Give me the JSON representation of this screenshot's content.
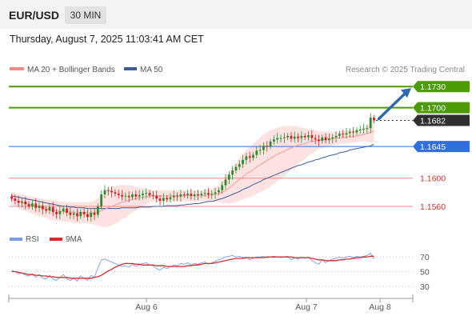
{
  "header": {
    "symbol": "EUR/USD",
    "timeframe": "30 MIN",
    "datetime": "Thursday, August 7, 2025 11:03:41 AM CET"
  },
  "legend": {
    "ma20_bb": "MA 20 + Bollinger Bands",
    "ma50": "MA 50",
    "credit": "Research © 2025 Trading Central"
  },
  "rsi_legend": {
    "rsi": "RSI",
    "ma9": "9MA"
  },
  "colors": {
    "green": "#4c9a06",
    "blue_level": "#2f6fe0",
    "red_level": "#f08a8a",
    "current": "#2f2f2f",
    "ma50": "#3a5d9a",
    "bollinger_fill": "#fde2e2",
    "ma20": "#f29a9a",
    "rsi_line": "#7a9ce8",
    "rsi_ma": "#d92b2b",
    "arrow": "#2f6ab0",
    "candle_up": "#2e8b2e",
    "candle_down": "#d02020"
  },
  "chart_data": [
    {
      "type": "candlestick",
      "title": "EUR/USD",
      "timeframe": "30 MIN",
      "ylim": [
        1.1535,
        1.1745
      ],
      "x_ticks": [
        "Aug 6",
        "Aug 7",
        "Aug 8"
      ],
      "key_levels": [
        {
          "value": 1.173,
          "label": "1.1730",
          "kind": "resistance-target",
          "color": "#4c9a06"
        },
        {
          "value": 1.17,
          "label": "1.1700",
          "kind": "resistance",
          "color": "#4c9a06"
        },
        {
          "value": 1.1682,
          "label": "1.1682",
          "kind": "current-price",
          "color": "#2f2f2f"
        },
        {
          "value": 1.1645,
          "label": "1.1645",
          "kind": "pivot",
          "color": "#2f6fe0"
        },
        {
          "value": 1.16,
          "label": "1.1600",
          "kind": "support",
          "color": "#f08a8a"
        },
        {
          "value": 1.156,
          "label": "1.1560",
          "kind": "support",
          "color": "#f08a8a"
        }
      ],
      "close": [
        1.1571,
        1.1568,
        1.1565,
        1.1567,
        1.1563,
        1.156,
        1.1564,
        1.1558,
        1.1561,
        1.1556,
        1.1554,
        1.1559,
        1.1552,
        1.1549,
        1.1553,
        1.1557,
        1.1551,
        1.1548,
        1.155,
        1.1546,
        1.1552,
        1.1549,
        1.1545,
        1.1551,
        1.1548,
        1.156,
        1.1577,
        1.1583,
        1.1582,
        1.158,
        1.1578,
        1.1576,
        1.1574,
        1.1575,
        1.1573,
        1.1577,
        1.1574,
        1.1576,
        1.1578,
        1.1579,
        1.1576,
        1.1575,
        1.1571,
        1.1568,
        1.1572,
        1.157,
        1.1573,
        1.1575,
        1.1574,
        1.1577,
        1.1576,
        1.1578,
        1.1575,
        1.1577,
        1.1576,
        1.1578,
        1.1579,
        1.1577,
        1.1578,
        1.158,
        1.1583,
        1.159,
        1.1598,
        1.1605,
        1.1611,
        1.1616,
        1.162,
        1.1626,
        1.1631,
        1.1629,
        1.1633,
        1.1639,
        1.164,
        1.1646,
        1.1645,
        1.1652,
        1.1655,
        1.1657,
        1.1657,
        1.1658,
        1.166,
        1.1656,
        1.1659,
        1.1657,
        1.166,
        1.1658,
        1.1661,
        1.1657,
        1.1655,
        1.1653,
        1.1658,
        1.1654,
        1.1656,
        1.1658,
        1.166,
        1.1663,
        1.1662,
        1.1664,
        1.1666,
        1.1665,
        1.1668,
        1.1669,
        1.167,
        1.1671,
        1.1686,
        1.1682
      ],
      "ma20": [
        1.1571,
        1.157,
        1.1567,
        1.1566,
        1.1565,
        1.1563,
        1.1562,
        1.156,
        1.1559,
        1.1558,
        1.1557,
        1.1555,
        1.1554,
        1.1554,
        1.1553,
        1.1553,
        1.1552,
        1.1552,
        1.1551,
        1.1551,
        1.1551,
        1.1551,
        1.1551,
        1.1551,
        1.1551,
        1.1552,
        1.1554,
        1.1556,
        1.1558,
        1.156,
        1.1562,
        1.1564,
        1.1566,
        1.1567,
        1.1569,
        1.157,
        1.1571,
        1.1572,
        1.1573,
        1.1574,
        1.1575,
        1.1575,
        1.1575,
        1.1575,
        1.1575,
        1.1575,
        1.1575,
        1.1575,
        1.1575,
        1.1575,
        1.1575,
        1.1575,
        1.1575,
        1.1575,
        1.1575,
        1.1575,
        1.1576,
        1.1576,
        1.1576,
        1.1577,
        1.1578,
        1.158,
        1.1583,
        1.1586,
        1.159,
        1.1594,
        1.1598,
        1.1602,
        1.1606,
        1.1609,
        1.1612,
        1.1616,
        1.1619,
        1.1622,
        1.1625,
        1.1628,
        1.1631,
        1.1634,
        1.1636,
        1.1638,
        1.1641,
        1.1643,
        1.1645,
        1.1647,
        1.1648,
        1.1649,
        1.1651,
        1.1652,
        1.1653,
        1.1654,
        1.1655,
        1.1655,
        1.1656,
        1.1656,
        1.1657,
        1.1657,
        1.1658,
        1.1658,
        1.1659,
        1.1659,
        1.166,
        1.1661,
        1.1662,
        1.1663,
        1.1665,
        1.1667
      ],
      "ma50": [
        1.1575,
        1.1574,
        1.1573,
        1.1572,
        1.1571,
        1.157,
        1.1569,
        1.1568,
        1.1567,
        1.1566,
        1.1565,
        1.1564,
        1.1563,
        1.1562,
        1.1561,
        1.156,
        1.156,
        1.1559,
        1.1559,
        1.1558,
        1.1558,
        1.1558,
        1.1557,
        1.1557,
        1.1557,
        1.1557,
        1.1557,
        1.1557,
        1.1557,
        1.1557,
        1.1557,
        1.1557,
        1.1558,
        1.1558,
        1.1558,
        1.1558,
        1.1558,
        1.1559,
        1.1559,
        1.1559,
        1.1559,
        1.156,
        1.156,
        1.156,
        1.156,
        1.1561,
        1.1561,
        1.1561,
        1.1561,
        1.1562,
        1.1562,
        1.1563,
        1.1563,
        1.1564,
        1.1564,
        1.1565,
        1.1566,
        1.1567,
        1.1567,
        1.1568,
        1.157,
        1.1571,
        1.1573,
        1.1575,
        1.1577,
        1.1579,
        1.1581,
        1.1584,
        1.1586,
        1.1588,
        1.1591,
        1.1593,
        1.1595,
        1.1598,
        1.16,
        1.1602,
        1.1604,
        1.1606,
        1.1608,
        1.161,
        1.1612,
        1.1614,
        1.1616,
        1.1618,
        1.1619,
        1.1621,
        1.1623,
        1.1624,
        1.1626,
        1.1627,
        1.1629,
        1.163,
        1.1632,
        1.1633,
        1.1634,
        1.1636,
        1.1637,
        1.1638,
        1.164,
        1.1641,
        1.1642,
        1.1643,
        1.1644,
        1.1645,
        1.1646,
        1.1648
      ],
      "bb_upper": [
        1.158,
        1.1579,
        1.1577,
        1.1577,
        1.1576,
        1.1575,
        1.1574,
        1.1573,
        1.1572,
        1.1571,
        1.157,
        1.1569,
        1.1568,
        1.1568,
        1.1567,
        1.1567,
        1.1566,
        1.1566,
        1.1566,
        1.1566,
        1.1566,
        1.1566,
        1.1566,
        1.1567,
        1.1568,
        1.1571,
        1.1577,
        1.1582,
        1.1585,
        1.1587,
        1.1589,
        1.159,
        1.159,
        1.159,
        1.159,
        1.1589,
        1.1588,
        1.1587,
        1.1586,
        1.1585,
        1.1584,
        1.1583,
        1.1583,
        1.1583,
        1.1583,
        1.1583,
        1.1583,
        1.1583,
        1.1583,
        1.1583,
        1.1583,
        1.1583,
        1.1583,
        1.1583,
        1.1583,
        1.1583,
        1.1584,
        1.1584,
        1.1585,
        1.1587,
        1.159,
        1.1595,
        1.1601,
        1.1608,
        1.1615,
        1.1622,
        1.1628,
        1.1634,
        1.164,
        1.1645,
        1.1649,
        1.1654,
        1.1658,
        1.1662,
        1.1665,
        1.1668,
        1.167,
        1.1672,
        1.1673,
        1.1674,
        1.1674,
        1.1674,
        1.1674,
        1.1673,
        1.1672,
        1.1671,
        1.167,
        1.1669,
        1.1668,
        1.1667,
        1.1667,
        1.1666,
        1.1666,
        1.1666,
        1.1666,
        1.1666,
        1.1667,
        1.1667,
        1.1668,
        1.1668,
        1.1669,
        1.167,
        1.1672,
        1.1674,
        1.1679,
        1.1683
      ],
      "bb_lower": [
        1.1562,
        1.1561,
        1.1557,
        1.1555,
        1.1554,
        1.1551,
        1.155,
        1.1547,
        1.1546,
        1.1545,
        1.1544,
        1.1541,
        1.154,
        1.154,
        1.1539,
        1.1539,
        1.1538,
        1.1538,
        1.1536,
        1.1536,
        1.1536,
        1.1536,
        1.1536,
        1.1535,
        1.1534,
        1.1533,
        1.1531,
        1.153,
        1.1531,
        1.1533,
        1.1535,
        1.1538,
        1.1542,
        1.1544,
        1.1548,
        1.1551,
        1.1554,
        1.1557,
        1.156,
        1.1563,
        1.1566,
        1.1567,
        1.1567,
        1.1567,
        1.1567,
        1.1567,
        1.1567,
        1.1567,
        1.1567,
        1.1567,
        1.1567,
        1.1567,
        1.1567,
        1.1567,
        1.1567,
        1.1567,
        1.1568,
        1.1568,
        1.1567,
        1.1567,
        1.1566,
        1.1565,
        1.1565,
        1.1564,
        1.1565,
        1.1566,
        1.1568,
        1.157,
        1.1572,
        1.1573,
        1.1575,
        1.1578,
        1.158,
        1.1582,
        1.1585,
        1.1588,
        1.1592,
        1.1596,
        1.1599,
        1.1602,
        1.1608,
        1.1612,
        1.1616,
        1.1621,
        1.1624,
        1.1627,
        1.1632,
        1.1635,
        1.1638,
        1.1641,
        1.1643,
        1.1644,
        1.1646,
        1.1646,
        1.1648,
        1.1648,
        1.1649,
        1.1649,
        1.165,
        1.165,
        1.1651,
        1.1652,
        1.1652,
        1.1652,
        1.1651,
        1.1651
      ]
    },
    {
      "type": "line",
      "title": "RSI",
      "ylim": [
        20,
        80
      ],
      "y_ticks": [
        70,
        50,
        30
      ],
      "series": [
        {
          "name": "RSI",
          "color": "#7a9ce8",
          "values": [
            52,
            50,
            47,
            48,
            45,
            44,
            47,
            42,
            46,
            41,
            40,
            45,
            40,
            38,
            42,
            46,
            40,
            38,
            41,
            37,
            44,
            41,
            38,
            45,
            42,
            55,
            66,
            67,
            65,
            63,
            61,
            59,
            57,
            58,
            56,
            60,
            57,
            59,
            61,
            62,
            59,
            58,
            54,
            52,
            56,
            54,
            57,
            59,
            58,
            61,
            60,
            62,
            59,
            61,
            60,
            62,
            63,
            60,
            62,
            64,
            66,
            68,
            70,
            71,
            72,
            70,
            71,
            69,
            70,
            66,
            68,
            70,
            70,
            71,
            69,
            70,
            71,
            70,
            69,
            70,
            71,
            66,
            69,
            67,
            70,
            68,
            70,
            65,
            62,
            60,
            66,
            62,
            65,
            67,
            68,
            70,
            68,
            70,
            71,
            69,
            71,
            70,
            71,
            72,
            75,
            67
          ]
        },
        {
          "name": "9MA",
          "color": "#d92b2b",
          "values": [
            50,
            50,
            49,
            48,
            47,
            46,
            46,
            45,
            45,
            44,
            44,
            43,
            43,
            42,
            42,
            42,
            42,
            41,
            41,
            41,
            41,
            41,
            41,
            41,
            42,
            43,
            45,
            48,
            51,
            53,
            56,
            58,
            60,
            61,
            61,
            61,
            60,
            60,
            59,
            59,
            59,
            59,
            58,
            58,
            58,
            57,
            57,
            57,
            57,
            57,
            57,
            58,
            58,
            59,
            59,
            60,
            61,
            61,
            61,
            62,
            63,
            64,
            65,
            66,
            67,
            68,
            68,
            68,
            69,
            69,
            69,
            69,
            69,
            69,
            70,
            70,
            70,
            70,
            70,
            70,
            70,
            70,
            69,
            69,
            69,
            69,
            69,
            68,
            67,
            66,
            66,
            65,
            65,
            65,
            65,
            66,
            66,
            67,
            67,
            68,
            69,
            69,
            70,
            70,
            71,
            71
          ]
        }
      ]
    }
  ]
}
